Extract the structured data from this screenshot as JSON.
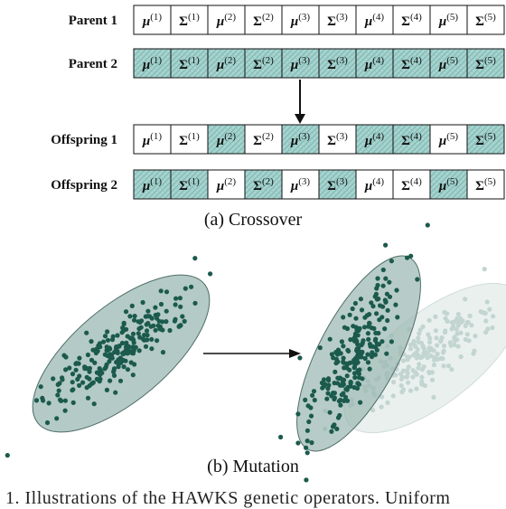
{
  "crossover": {
    "rows": [
      {
        "label": "Parent 1",
        "genes": [
          "μ(1)",
          "Σ(1)",
          "μ(2)",
          "Σ(2)",
          "μ(3)",
          "Σ(3)",
          "μ(4)",
          "Σ(4)",
          "μ(5)",
          "Σ(5)"
        ],
        "shaded": [
          false,
          false,
          false,
          false,
          false,
          false,
          false,
          false,
          false,
          false
        ]
      },
      {
        "label": "Parent 2",
        "genes": [
          "μ(1)",
          "Σ(1)",
          "μ(2)",
          "Σ(2)",
          "μ(3)",
          "Σ(3)",
          "μ(4)",
          "Σ(4)",
          "μ(5)",
          "Σ(5)"
        ],
        "shaded": [
          true,
          true,
          true,
          true,
          true,
          true,
          true,
          true,
          true,
          true
        ]
      },
      {
        "label": "Offspring 1",
        "genes": [
          "μ(1)",
          "Σ(1)",
          "μ(2)",
          "Σ(2)",
          "μ(3)",
          "Σ(3)",
          "μ(4)",
          "Σ(4)",
          "μ(5)",
          "Σ(5)"
        ],
        "shaded": [
          false,
          false,
          true,
          false,
          true,
          false,
          true,
          true,
          false,
          true
        ]
      },
      {
        "label": "Offspring 2",
        "genes": [
          "μ(1)",
          "Σ(1)",
          "μ(2)",
          "Σ(2)",
          "μ(3)",
          "Σ(3)",
          "μ(4)",
          "Σ(4)",
          "μ(5)",
          "Σ(5)"
        ],
        "shaded": [
          true,
          true,
          false,
          true,
          false,
          true,
          false,
          false,
          true,
          false
        ]
      }
    ],
    "caption": "(a) Crossover"
  },
  "mutation": {
    "caption": "(b) Mutation"
  },
  "footer_text": "1.   Illustrations of the HAWKS genetic operators. Uniform",
  "colors": {
    "shade": "#a9d4d0",
    "shade_pattern": "#7fb9b4",
    "cluster_fill": "#9bb8b3",
    "cluster_point": "#1b5a4d",
    "ghost_fill": "#e4ecea",
    "ghost_point": "#c3d5d1",
    "stroke": "#111111"
  }
}
